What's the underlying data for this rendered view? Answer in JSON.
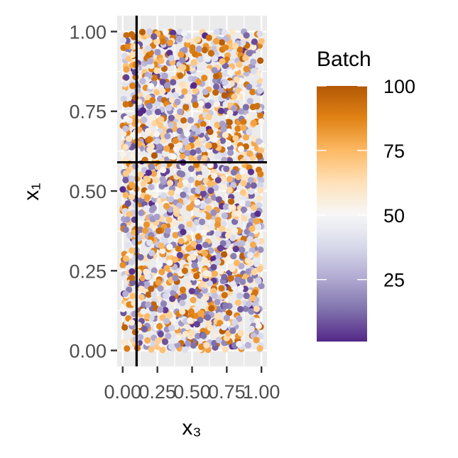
{
  "chart_data": {
    "type": "scatter",
    "title": "",
    "xlabel": "x₃",
    "ylabel": "x₁",
    "xlim": [
      -0.04,
      1.04
    ],
    "ylim": [
      -0.05,
      1.05
    ],
    "x_ticks": [
      0,
      0.25,
      0.5,
      0.75,
      1
    ],
    "x_tick_labels": [
      "0.00",
      "0.25",
      "0.50",
      "0.75",
      "1.00"
    ],
    "y_ticks": [
      0,
      0.25,
      0.5,
      0.75,
      1
    ],
    "y_tick_labels": [
      "0.00",
      "0.25",
      "0.50",
      "0.75",
      "1.00"
    ],
    "grid": true,
    "panel_background": "#EBEBEB",
    "reference_lines": {
      "vertical_x": 0.1,
      "horizontal_y": 0.59
    },
    "point_count": 2000,
    "color_variable": "Batch",
    "color_range": [
      1,
      100
    ],
    "legend": {
      "title": "Batch",
      "position": "right",
      "ticks": [
        25,
        50,
        75,
        100
      ],
      "tick_labels": [
        "25",
        "50",
        "75",
        "100"
      ],
      "palette": [
        "#542788",
        "#8073AC",
        "#B2ABD2",
        "#D8DAEB",
        "#F7F7F7",
        "#FEE0B6",
        "#FDB863",
        "#E08214",
        "#B35806"
      ]
    }
  }
}
